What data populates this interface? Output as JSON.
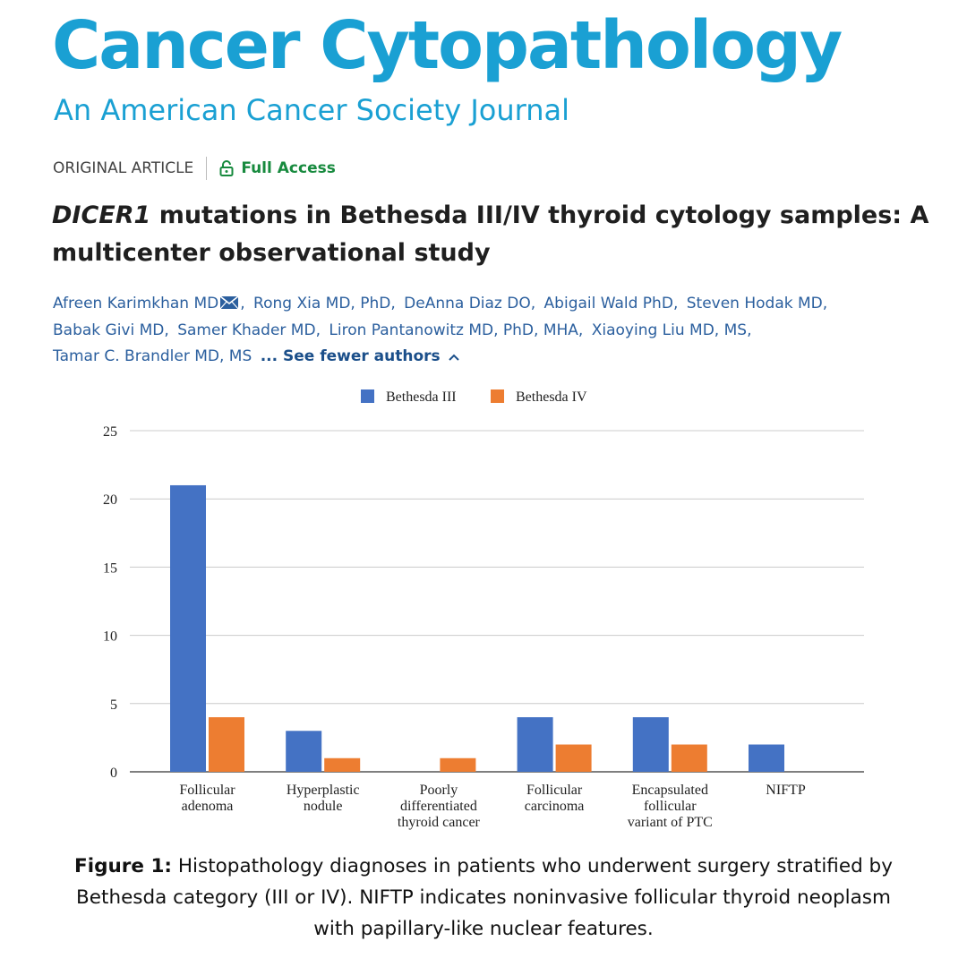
{
  "journal": {
    "title": "Cancer Cytopathology",
    "subtitle": "An American Cancer Society Journal"
  },
  "article": {
    "type": "ORIGINAL ARTICLE",
    "access": "Full Access",
    "title_gene": "DICER1",
    "title_rest": " mutations in Bethesda III/IV thyroid cytology samples: A multicenter observational study",
    "authors": [
      "Afreen Karimkhan MD",
      "Rong Xia MD, PhD",
      "DeAnna Diaz DO",
      "Abigail Wald PhD",
      "Steven Hodak MD",
      "Babak Givi MD",
      "Samer Khader MD",
      "Liron Pantanowitz MD, PhD, MHA",
      "Xiaoying Liu MD, MS",
      "Tamar C. Brandler MD, MS"
    ],
    "see_fewer": "... See fewer authors"
  },
  "chart_data": {
    "type": "bar",
    "categories": [
      [
        "Follicular",
        "adenoma"
      ],
      [
        "Hyperplastic",
        "nodule"
      ],
      [
        "Poorly",
        "differentiated",
        "thyroid cancer"
      ],
      [
        "Follicular",
        "carcinoma"
      ],
      [
        "Encapsulated",
        "follicular",
        "variant of PTC"
      ],
      [
        "NIFTP"
      ]
    ],
    "series": [
      {
        "name": "Bethesda III",
        "color": "#4472c4",
        "values": [
          21,
          3,
          0,
          4,
          4,
          2
        ]
      },
      {
        "name": "Bethesda IV",
        "color": "#ed7d31",
        "values": [
          4,
          1,
          1,
          2,
          2,
          0
        ]
      }
    ],
    "yticks": [
      0,
      5,
      10,
      15,
      20,
      25
    ],
    "ylim": [
      0,
      25
    ],
    "grid": true,
    "legend": "top-center"
  },
  "caption": {
    "label": "Figure 1:",
    "text": " Histopathology diagnoses in patients who underwent surgery stratified by Bethesda category (III or IV). NIFTP indicates noninvasive follicular thyroid neoplasm with papillary-like nuclear features."
  }
}
